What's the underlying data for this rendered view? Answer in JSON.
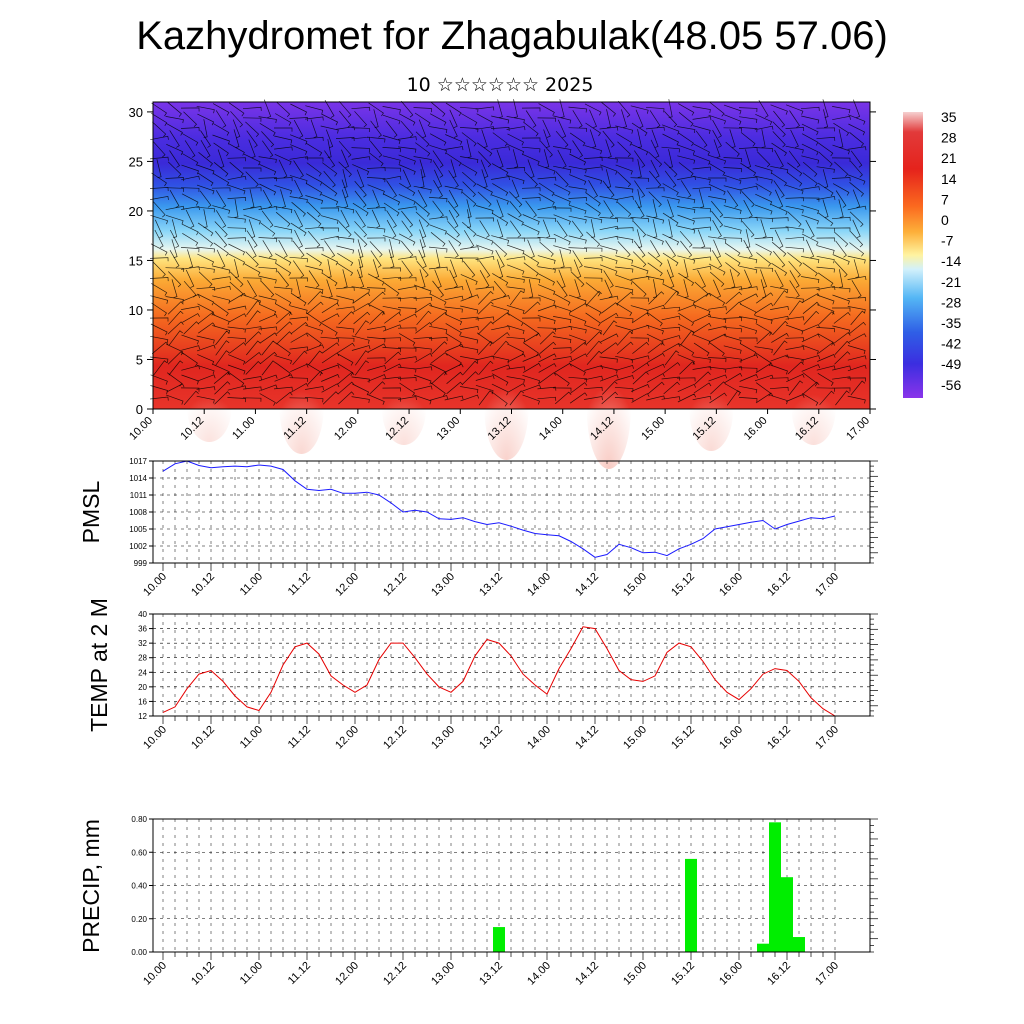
{
  "header": {
    "title": "Kazhydromet for Zhagabulak(48.05 57.06)",
    "subtitle": "10 ☆☆☆☆☆☆ 2025"
  },
  "colors": {
    "pmsl_line": "#1a1aff",
    "temp_line": "#e60000",
    "precip_bar": "#00ee00",
    "axis": "#000000"
  },
  "chart_data": [
    {
      "type": "heatmap",
      "title": "",
      "x_ticks": [
        "10.00",
        "10.12",
        "11.00",
        "11.12",
        "12.00",
        "12.12",
        "13.00",
        "13.12",
        "14.00",
        "14.12",
        "15.00",
        "15.12",
        "16.00",
        "16.12",
        "17.00"
      ],
      "y_ticks": [
        "0",
        "5",
        "10",
        "15",
        "20",
        "25",
        "30"
      ],
      "ylim": [
        0,
        31
      ],
      "colorbar_levels": [
        "35",
        "28",
        "21",
        "14",
        "7",
        "0",
        "-7",
        "-14",
        "-21",
        "-28",
        "-35",
        "-42",
        "-49",
        "-56"
      ],
      "colorbar_colors": [
        "#f2b8b8",
        "#e23a3a",
        "#e31a1c",
        "#f03c1c",
        "#fb6a1f",
        "#fd9a2a",
        "#fdc94a",
        "#fff5a8",
        "#c8eefc",
        "#7fd0f8",
        "#3c9df0",
        "#2f5fe6",
        "#3b2ee0",
        "#7a2ee8"
      ],
      "wind_barbs": "overlaid"
    },
    {
      "type": "line",
      "ylabel": "PMSL",
      "y_ticks": [
        "1017",
        "1014",
        "1011",
        "1008",
        "1005",
        "1002",
        "999"
      ],
      "ylim": [
        999,
        1017
      ],
      "x_ticks": [
        "10.00",
        "10.12",
        "11.00",
        "11.12",
        "12.00",
        "12.12",
        "13.00",
        "13.12",
        "14.00",
        "14.12",
        "15.00",
        "15.12",
        "16.00",
        "16.12",
        "17.00"
      ],
      "x_hours": [
        0,
        3,
        6,
        9,
        12,
        15,
        18,
        21,
        24,
        27,
        30,
        33,
        36,
        39,
        42,
        45,
        48,
        51,
        54,
        57,
        60,
        63,
        66,
        69,
        72,
        75,
        78,
        81,
        84,
        87,
        90,
        93,
        96,
        99,
        102,
        105,
        108,
        111,
        114,
        117,
        120,
        123,
        126,
        129,
        132,
        135,
        138,
        141,
        144,
        147,
        150,
        153,
        156,
        159,
        162,
        165,
        168
      ],
      "values": [
        1015.2,
        1016.5,
        1017.0,
        1016.2,
        1015.8,
        1016.0,
        1016.1,
        1016.0,
        1016.3,
        1016.1,
        1015.5,
        1013.5,
        1012.0,
        1011.8,
        1012.0,
        1011.3,
        1011.3,
        1011.5,
        1011.0,
        1009.6,
        1008.0,
        1008.3,
        1008.0,
        1006.8,
        1006.7,
        1007.0,
        1006.3,
        1005.8,
        1006.1,
        1005.5,
        1004.8,
        1004.2,
        1004.0,
        1003.8,
        1002.8,
        1001.5,
        1000.0,
        1000.5,
        1002.3,
        1001.7,
        1000.8,
        1000.9,
        1000.3,
        1001.5,
        1002.3,
        1003.3,
        1005.0,
        1005.4,
        1005.8,
        1006.2,
        1006.5,
        1005.0,
        1005.8,
        1006.4,
        1007.0,
        1006.8,
        1007.3
      ],
      "grid": true
    },
    {
      "type": "line",
      "ylabel": "TEMP at 2 M",
      "y_ticks": [
        "40",
        "36",
        "32",
        "28",
        "24",
        "20",
        "16",
        "12"
      ],
      "ylim": [
        12,
        40
      ],
      "x_ticks": [
        "10.00",
        "10.12",
        "11.00",
        "11.12",
        "12.00",
        "12.12",
        "13.00",
        "13.12",
        "14.00",
        "14.12",
        "15.00",
        "15.12",
        "16.00",
        "16.12",
        "17.00"
      ],
      "x_hours": [
        0,
        3,
        6,
        9,
        12,
        15,
        18,
        21,
        24,
        27,
        30,
        33,
        36,
        39,
        42,
        45,
        48,
        51,
        54,
        57,
        60,
        63,
        66,
        69,
        72,
        75,
        78,
        81,
        84,
        87,
        90,
        93,
        96,
        99,
        102,
        105,
        108,
        111,
        114,
        117,
        120,
        123,
        126,
        129,
        132,
        135,
        138,
        141,
        144,
        147,
        150,
        153,
        156,
        159,
        162,
        165,
        168
      ],
      "values": [
        13.0,
        14.5,
        19.5,
        23.5,
        24.5,
        21.5,
        17.5,
        14.5,
        13.5,
        18.5,
        26.0,
        31.0,
        32.0,
        29.0,
        23.0,
        20.5,
        18.5,
        20.5,
        27.5,
        32.0,
        32.0,
        28.0,
        23.5,
        20.0,
        18.5,
        21.5,
        28.5,
        33.0,
        32.0,
        28.5,
        23.5,
        20.5,
        18.0,
        25.0,
        30.5,
        36.5,
        36.0,
        30.5,
        24.5,
        22.0,
        21.5,
        23.0,
        29.5,
        32.0,
        31.0,
        27.0,
        22.0,
        18.5,
        16.5,
        19.5,
        23.5,
        25.0,
        24.5,
        21.5,
        17.0,
        14.0,
        12.0
      ],
      "grid": true
    },
    {
      "type": "bar",
      "ylabel": "PRECIP, mm",
      "y_ticks": [
        "0.80",
        "0.60",
        "0.40",
        "0.20",
        "0.00"
      ],
      "ylim": [
        0,
        0.8
      ],
      "x_ticks": [
        "10.00",
        "10.12",
        "11.00",
        "11.12",
        "12.00",
        "12.12",
        "13.00",
        "13.12",
        "14.00",
        "14.12",
        "15.00",
        "15.12",
        "16.00",
        "16.12",
        "17.00"
      ],
      "bars": [
        {
          "hour": 84,
          "value": 0.15
        },
        {
          "hour": 132,
          "value": 0.56
        },
        {
          "hour": 150,
          "value": 0.05
        },
        {
          "hour": 153,
          "value": 0.78
        },
        {
          "hour": 156,
          "value": 0.45
        },
        {
          "hour": 159,
          "value": 0.09
        }
      ],
      "grid": true
    }
  ]
}
